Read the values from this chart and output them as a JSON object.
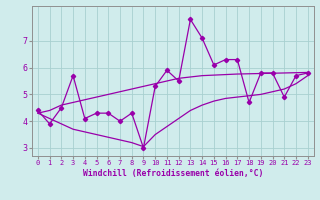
{
  "x": [
    0,
    1,
    2,
    3,
    4,
    5,
    6,
    7,
    8,
    9,
    10,
    11,
    12,
    13,
    14,
    15,
    16,
    17,
    18,
    19,
    20,
    21,
    22,
    23
  ],
  "line_main": [
    4.4,
    3.9,
    4.5,
    5.7,
    4.1,
    4.3,
    4.3,
    4.0,
    4.3,
    3.0,
    5.3,
    5.9,
    5.5,
    7.8,
    7.1,
    6.1,
    6.3,
    6.3,
    4.7,
    5.8,
    5.8,
    4.9,
    5.7,
    5.8
  ],
  "line_upper": [
    4.3,
    4.4,
    4.6,
    4.7,
    4.8,
    4.9,
    5.0,
    5.1,
    5.2,
    5.3,
    5.4,
    5.5,
    5.6,
    5.65,
    5.7,
    5.72,
    5.74,
    5.76,
    5.77,
    5.78,
    5.79,
    5.8,
    5.81,
    5.82
  ],
  "line_lower": [
    4.3,
    4.1,
    3.9,
    3.7,
    3.6,
    3.5,
    3.4,
    3.3,
    3.2,
    3.05,
    3.5,
    3.8,
    4.1,
    4.4,
    4.6,
    4.75,
    4.85,
    4.9,
    4.95,
    5.0,
    5.1,
    5.2,
    5.4,
    5.7
  ],
  "line_color": "#9900aa",
  "bg_color": "#d0ecec",
  "grid_color": "#a8d0d0",
  "xlabel": "Windchill (Refroidissement éolien,°C)",
  "ylim": [
    2.7,
    8.3
  ],
  "xlim": [
    -0.5,
    23.5
  ],
  "yticks": [
    3,
    4,
    5,
    6,
    7
  ],
  "xticks": [
    0,
    1,
    2,
    3,
    4,
    5,
    6,
    7,
    8,
    9,
    10,
    11,
    12,
    13,
    14,
    15,
    16,
    17,
    18,
    19,
    20,
    21,
    22,
    23
  ]
}
